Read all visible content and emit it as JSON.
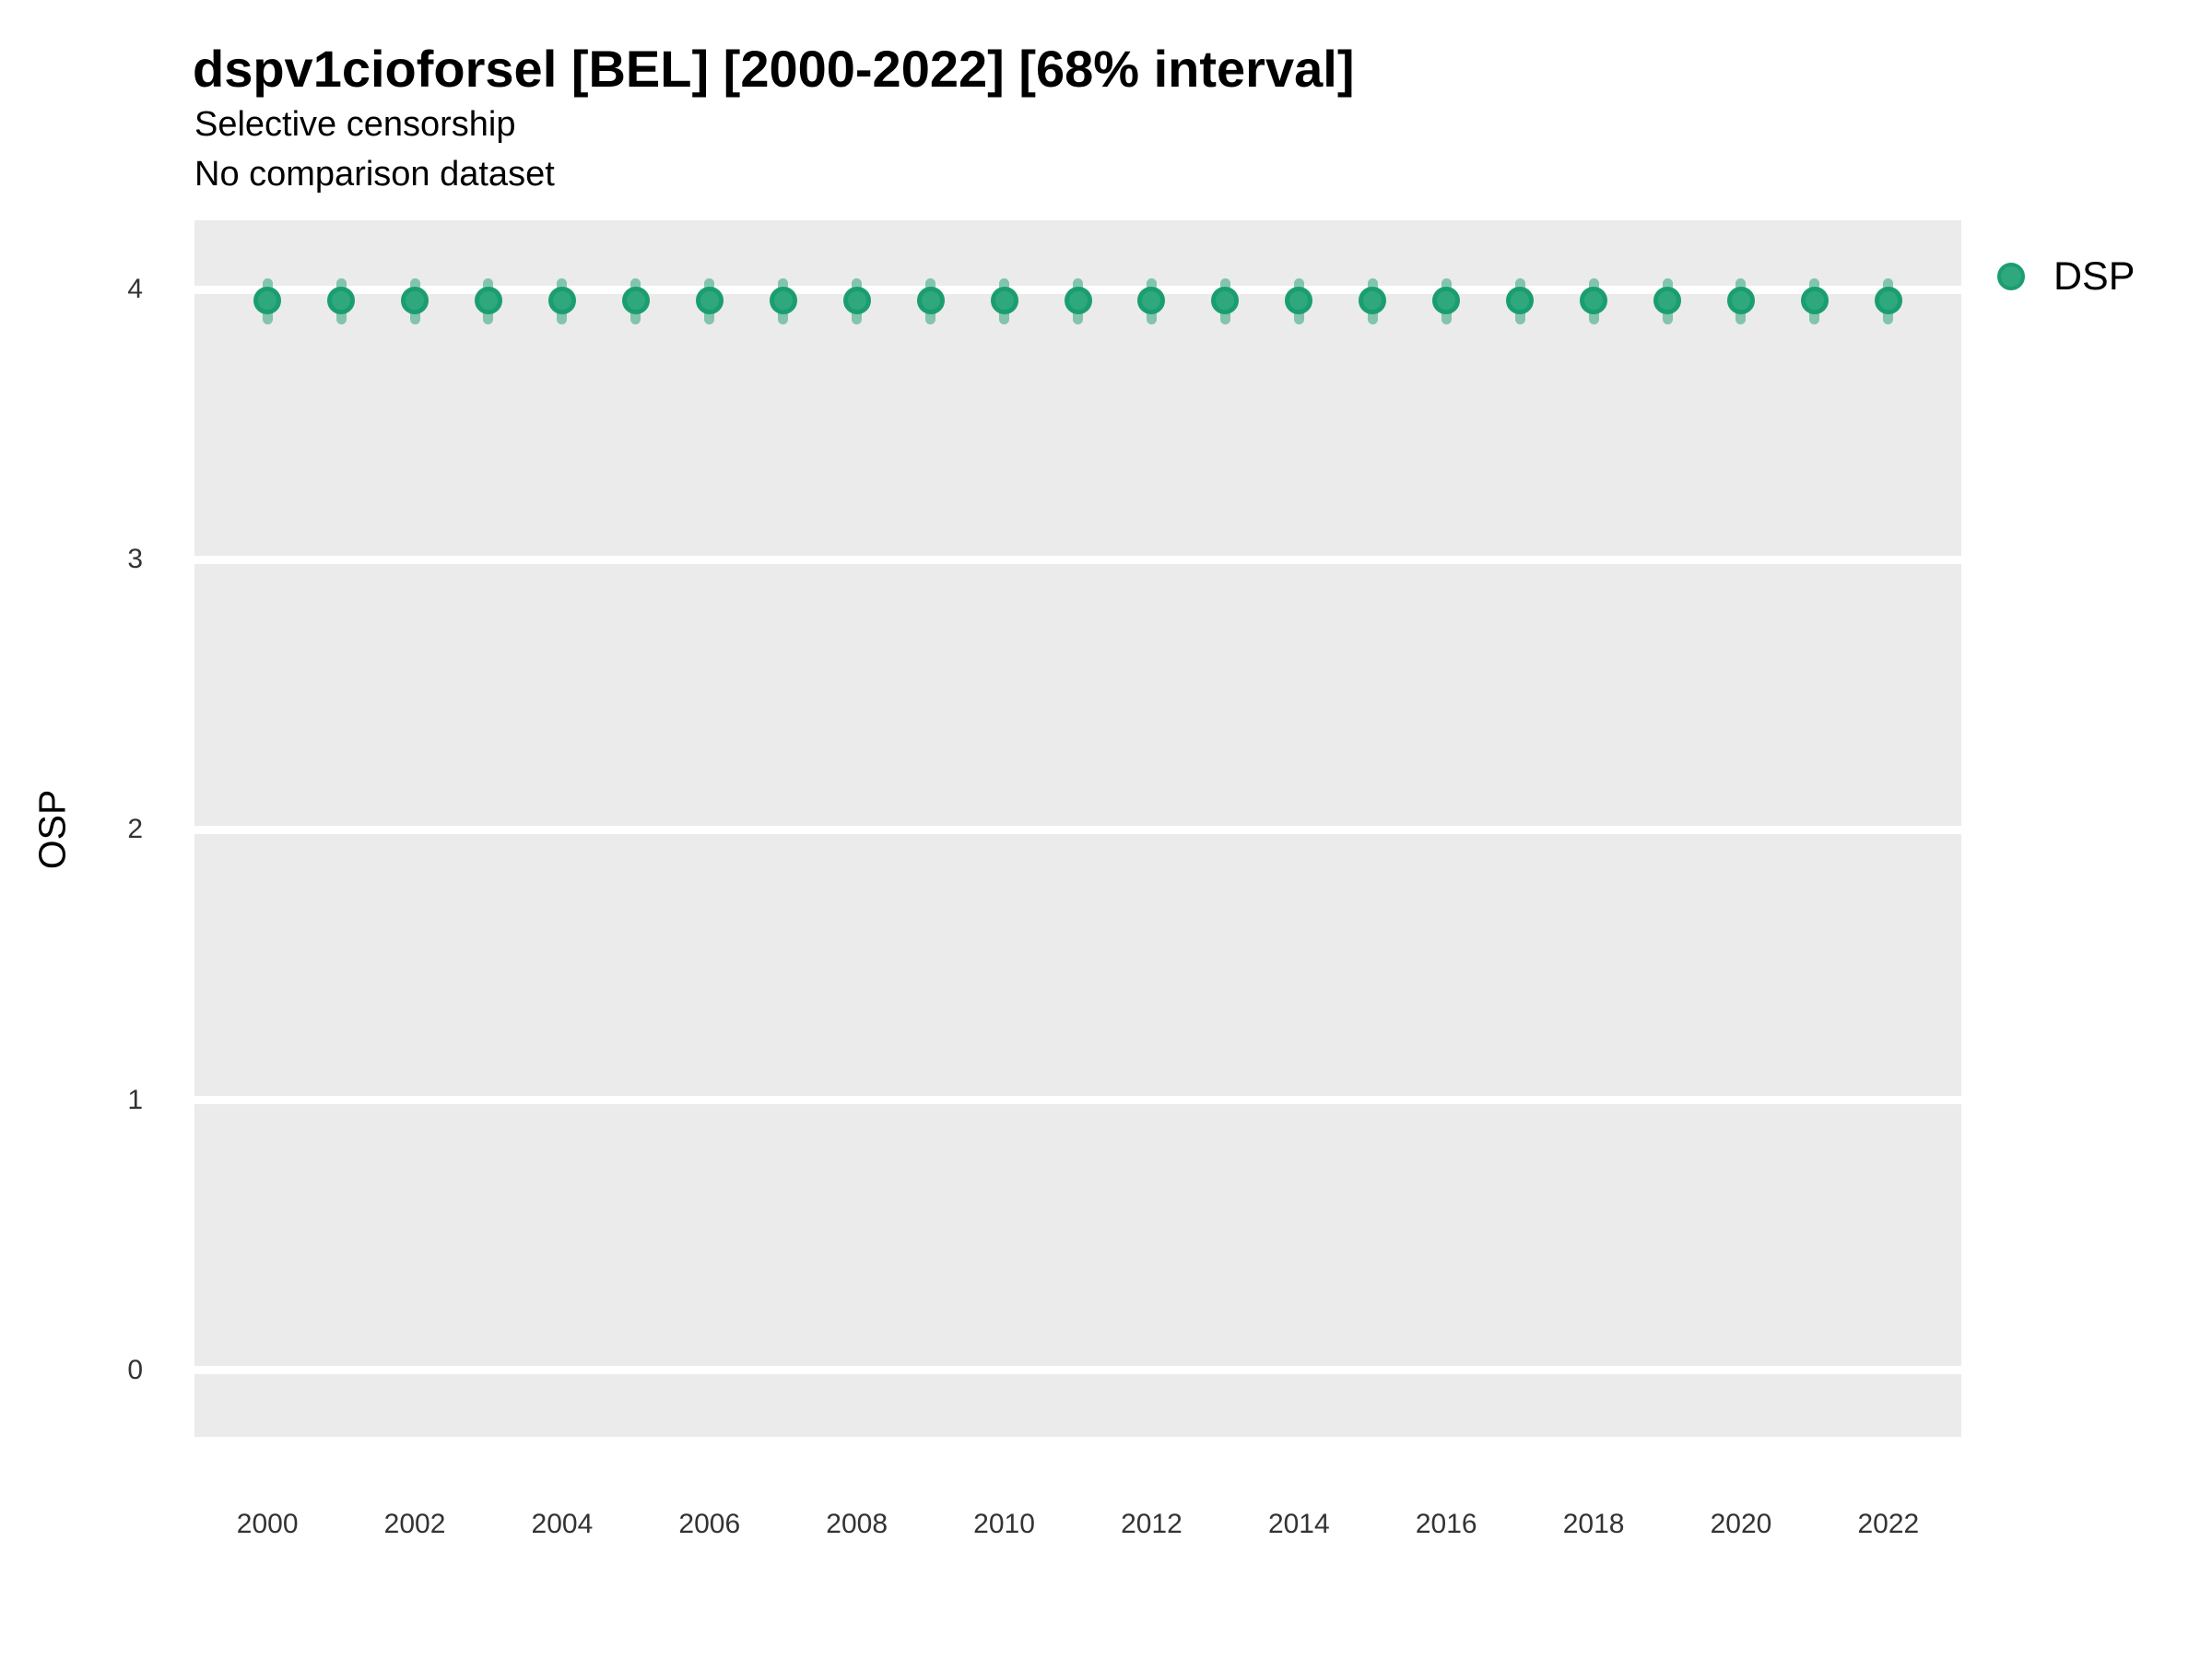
{
  "header": {
    "title": "dspv1cioforsel [BEL] [2000-2022] [68% interval]",
    "subtitle_line1": "Selective censorship",
    "subtitle_line2": "No comparison dataset"
  },
  "legend": {
    "label": "DSP"
  },
  "colors": {
    "point_fill": "#2fa87e",
    "point_stroke": "#1a9e70",
    "interval": "rgba(26, 158, 111, 0.5)",
    "panel_bg": "#ebebeb",
    "gridline": "#ffffff",
    "tick_text": "#333333",
    "text": "#000000"
  },
  "chart_data": {
    "type": "scatter",
    "title": "dspv1cioforsel [BEL] [2000-2022] [68% interval]",
    "subtitle": [
      "Selective censorship",
      "No comparison dataset"
    ],
    "xlabel": "",
    "ylabel": "OSP",
    "x": [
      2000,
      2001,
      2002,
      2003,
      2004,
      2005,
      2006,
      2007,
      2008,
      2009,
      2010,
      2011,
      2012,
      2013,
      2014,
      2015,
      2016,
      2017,
      2018,
      2019,
      2020,
      2021,
      2022
    ],
    "series": [
      {
        "name": "DSP",
        "values": [
          3.96,
          3.96,
          3.96,
          3.96,
          3.96,
          3.96,
          3.96,
          3.96,
          3.96,
          3.96,
          3.96,
          3.96,
          3.96,
          3.96,
          3.96,
          3.96,
          3.96,
          3.96,
          3.96,
          3.96,
          3.96,
          3.96,
          3.96
        ],
        "interval_low": [
          3.87,
          3.87,
          3.87,
          3.87,
          3.87,
          3.87,
          3.87,
          3.87,
          3.87,
          3.87,
          3.87,
          3.87,
          3.87,
          3.87,
          3.87,
          3.87,
          3.87,
          3.87,
          3.87,
          3.87,
          3.87,
          3.87,
          3.87
        ],
        "interval_high": [
          4.04,
          4.04,
          4.04,
          4.04,
          4.04,
          4.04,
          4.04,
          4.04,
          4.04,
          4.04,
          4.04,
          4.04,
          4.04,
          4.04,
          4.04,
          4.04,
          4.04,
          4.04,
          4.04,
          4.04,
          4.04,
          4.04,
          4.04
        ]
      }
    ],
    "interval_note": "68% interval",
    "xticks": [
      2000,
      2002,
      2004,
      2006,
      2008,
      2010,
      2012,
      2014,
      2016,
      2018,
      2020,
      2022
    ],
    "xtick_labels": [
      "2000",
      "2002",
      "2004",
      "2006",
      "2008",
      "2010",
      "2012",
      "2014",
      "2016",
      "2018",
      "2020",
      "2022"
    ],
    "yticks": [
      0,
      1,
      2,
      3,
      4
    ],
    "ytick_labels": [
      "0",
      "1",
      "2",
      "3",
      "4"
    ],
    "xlim": [
      1999.01,
      2022.99
    ],
    "ylim": [
      -0.246,
      4.256
    ],
    "grid": "major-horizontal-only",
    "legend_position": "right-top"
  }
}
